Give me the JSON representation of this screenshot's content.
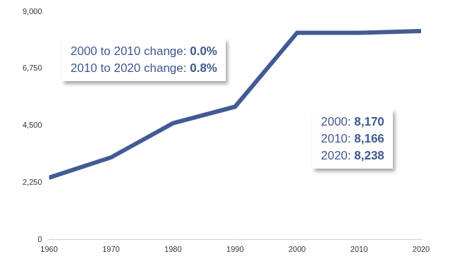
{
  "chart_data": {
    "type": "line",
    "x": [
      1960,
      1970,
      1980,
      1990,
      2000,
      2010,
      2020
    ],
    "values": [
      2450,
      3250,
      4600,
      5250,
      8170,
      8166,
      8238
    ],
    "color": "#435b93",
    "xlim": [
      1960,
      2020
    ],
    "xticks": [
      1960,
      1970,
      1980,
      1990,
      2000,
      2010,
      2020
    ],
    "ylim": [
      0,
      9000
    ],
    "yticks": [
      0,
      {
        "value": 2250,
        "label": "2,250"
      },
      {
        "value": 4500,
        "label": "4,500"
      },
      {
        "value": 6750,
        "label": "6,750"
      },
      {
        "value": 9000,
        "label": "9,000"
      }
    ],
    "grid": false,
    "annotations": [
      [
        "2000 to 2010 change: 0.0%",
        "2010 to 2020 change: 0.8%"
      ],
      [
        "2000: 8,170",
        "2010: 8,166",
        "2020: 8,238"
      ]
    ]
  }
}
